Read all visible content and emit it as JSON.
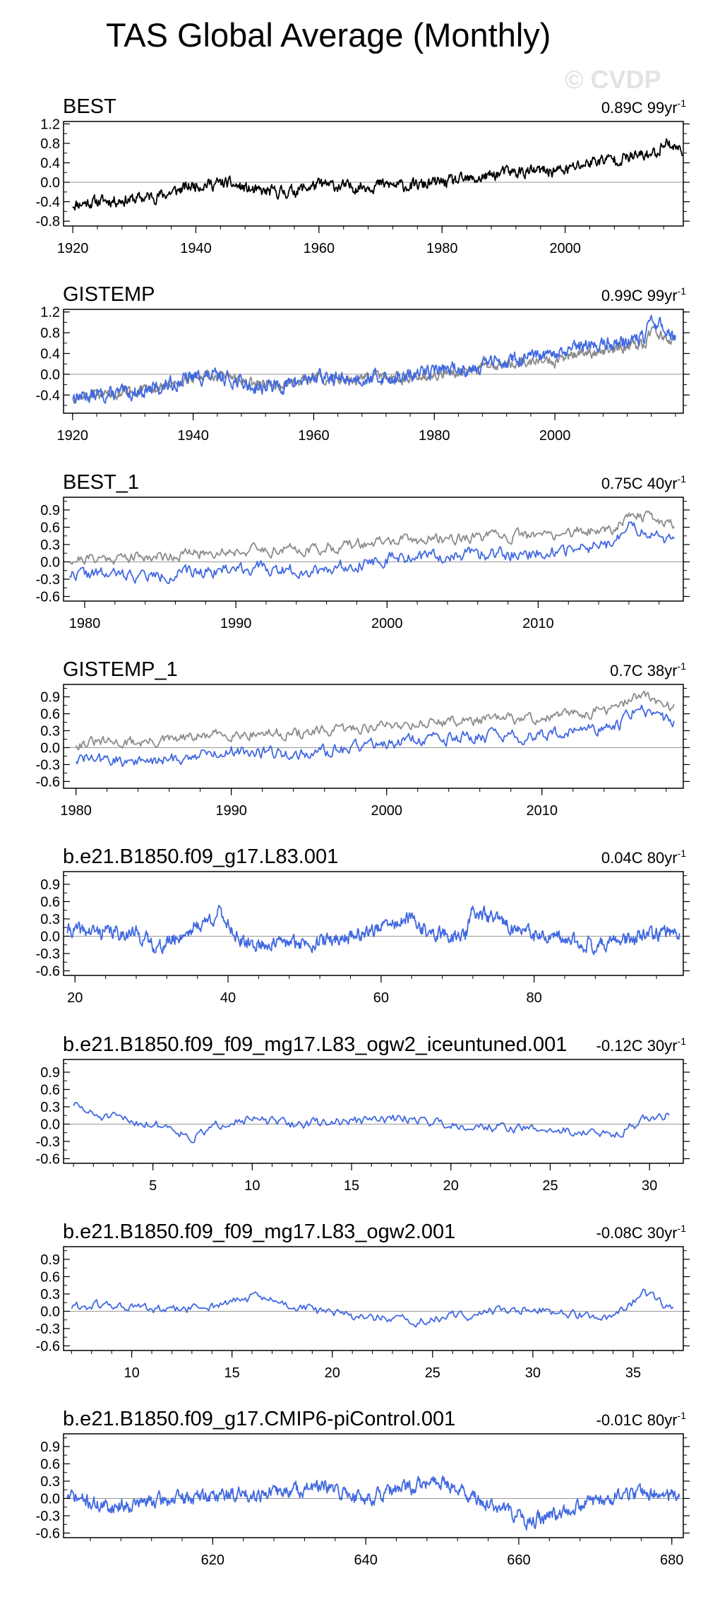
{
  "page": {
    "title": "TAS Global Average (Monthly)",
    "watermark": "© CVDP",
    "trend_unit_suffix": "yr",
    "trend_unit_exp": "-1"
  },
  "colors": {
    "obs": "#000000",
    "model": "#4169e1",
    "ref": "#8c8c8c",
    "zero_line": "#999999"
  },
  "chart_data": [
    {
      "type": "line",
      "title": "BEST",
      "trend_value": "0.89C",
      "trend_period": "99",
      "xlim": [
        1918.5,
        2019.2
      ],
      "ylim": [
        -0.9,
        1.25
      ],
      "yticks": [
        -0.8,
        -0.4,
        0.0,
        0.4,
        0.8,
        1.2
      ],
      "yticklabels": [
        "-0.8",
        "-0.4",
        "0.0",
        "0.4",
        "0.8",
        "1.2"
      ],
      "xticks": [
        1920,
        1940,
        1960,
        1980,
        2000
      ],
      "xticklabels": [
        "1920",
        "1940",
        "1960",
        "1980",
        "2000"
      ],
      "series": [
        {
          "name": "BEST",
          "color": "#000000",
          "x": [
            1920,
            1925,
            1930,
            1935,
            1940,
            1945,
            1950,
            1955,
            1960,
            1965,
            1970,
            1975,
            1980,
            1985,
            1990,
            1995,
            2000,
            2005,
            2010,
            2015,
            2016,
            2019
          ],
          "y": [
            -0.45,
            -0.38,
            -0.35,
            -0.25,
            -0.05,
            -0.02,
            -0.2,
            -0.2,
            -0.05,
            -0.1,
            -0.05,
            -0.08,
            0.0,
            0.05,
            0.2,
            0.22,
            0.25,
            0.45,
            0.5,
            0.6,
            0.85,
            0.65
          ],
          "noise": 0.1,
          "seed": 11
        }
      ]
    },
    {
      "type": "line",
      "title": "GISTEMP",
      "trend_value": "0.99C",
      "trend_period": "99",
      "xlim": [
        1918.5,
        2021.3
      ],
      "ylim": [
        -0.75,
        1.25
      ],
      "yticks": [
        -0.4,
        0.0,
        0.4,
        0.8,
        1.2
      ],
      "yticklabels": [
        "-0.4",
        "0.0",
        "0.4",
        "0.8",
        "1.2"
      ],
      "xticks": [
        1920,
        1940,
        1960,
        1980,
        2000
      ],
      "xticklabels": [
        "1920",
        "1940",
        "1960",
        "1980",
        "2000"
      ],
      "series": [
        {
          "name": "BEST",
          "color": "#8c8c8c",
          "x": [
            1920,
            1925,
            1930,
            1935,
            1940,
            1945,
            1950,
            1955,
            1960,
            1965,
            1970,
            1975,
            1980,
            1985,
            1990,
            1995,
            2000,
            2005,
            2010,
            2015,
            2016,
            2020
          ],
          "y": [
            -0.45,
            -0.38,
            -0.35,
            -0.25,
            -0.05,
            -0.02,
            -0.2,
            -0.2,
            -0.05,
            -0.1,
            -0.05,
            -0.08,
            0.0,
            0.05,
            0.2,
            0.22,
            0.25,
            0.42,
            0.48,
            0.58,
            0.85,
            0.6
          ],
          "noise": 0.08,
          "seed": 12
        },
        {
          "name": "GISTEMP",
          "color": "#4169e1",
          "x": [
            1920,
            1925,
            1930,
            1935,
            1940,
            1945,
            1950,
            1955,
            1960,
            1965,
            1970,
            1975,
            1980,
            1985,
            1990,
            1995,
            2000,
            2005,
            2010,
            2015,
            2016,
            2020
          ],
          "y": [
            -0.42,
            -0.4,
            -0.35,
            -0.25,
            -0.05,
            -0.05,
            -0.25,
            -0.22,
            -0.05,
            -0.1,
            -0.05,
            -0.08,
            0.1,
            0.1,
            0.25,
            0.3,
            0.35,
            0.55,
            0.6,
            0.72,
            1.05,
            0.72
          ],
          "noise": 0.11,
          "seed": 13
        }
      ]
    },
    {
      "type": "line",
      "title": "BEST_1",
      "trend_value": "0.75C",
      "trend_period": "40",
      "xlim": [
        1978.6,
        2019.6
      ],
      "ylim": [
        -0.68,
        1.12
      ],
      "yticks": [
        -0.6,
        -0.3,
        0.0,
        0.3,
        0.6,
        0.9
      ],
      "yticklabels": [
        "-0.6",
        "-0.3",
        "0.0",
        "0.3",
        "0.6",
        "0.9"
      ],
      "xticks": [
        1980,
        1990,
        2000,
        2010
      ],
      "xticklabels": [
        "1980",
        "1990",
        "2000",
        "2010"
      ],
      "series": [
        {
          "name": "BEST",
          "color": "#8c8c8c",
          "x": [
            1979,
            1985,
            1990,
            1995,
            2000,
            2005,
            2010,
            2015,
            2016,
            2019
          ],
          "y": [
            0.05,
            0.1,
            0.2,
            0.22,
            0.35,
            0.42,
            0.45,
            0.58,
            0.85,
            0.65
          ],
          "noise": 0.08,
          "seed": 21
        },
        {
          "name": "BEST_1",
          "color": "#4169e1",
          "x": [
            1979,
            1985,
            1990,
            1995,
            2000,
            2005,
            2010,
            2015,
            2016,
            2019
          ],
          "y": [
            -0.2,
            -0.25,
            -0.1,
            -0.15,
            0.05,
            0.12,
            0.15,
            0.3,
            0.6,
            0.35
          ],
          "noise": 0.09,
          "seed": 22
        }
      ]
    },
    {
      "type": "line",
      "title": "GISTEMP_1",
      "trend_value": "0.7C",
      "trend_period": "38",
      "xlim": [
        1979.2,
        2019.1
      ],
      "ylim": [
        -0.72,
        1.12
      ],
      "yticks": [
        -0.6,
        -0.3,
        0.0,
        0.3,
        0.6,
        0.9
      ],
      "yticklabels": [
        "-0.6",
        "-0.3",
        "0.0",
        "0.3",
        "0.6",
        "0.9"
      ],
      "xticks": [
        1980,
        1990,
        2000,
        2010
      ],
      "xticklabels": [
        "1980",
        "1990",
        "2000",
        "2010"
      ],
      "series": [
        {
          "name": "GISTEMP",
          "color": "#8c8c8c",
          "x": [
            1980,
            1985,
            1990,
            1995,
            2000,
            2005,
            2010,
            2015,
            2016,
            2018.5
          ],
          "y": [
            0.08,
            0.1,
            0.25,
            0.25,
            0.4,
            0.48,
            0.52,
            0.7,
            0.95,
            0.72
          ],
          "noise": 0.08,
          "seed": 31
        },
        {
          "name": "GISTEMP_1",
          "color": "#4169e1",
          "x": [
            1980,
            1985,
            1990,
            1995,
            2000,
            2005,
            2010,
            2015,
            2016,
            2018.5
          ],
          "y": [
            -0.2,
            -0.25,
            -0.05,
            -0.12,
            0.1,
            0.18,
            0.2,
            0.4,
            0.7,
            0.45
          ],
          "noise": 0.09,
          "seed": 32
        }
      ]
    },
    {
      "type": "line",
      "title": "b.e21.B1850.f09_g17.L83.001",
      "trend_value": "0.04C",
      "trend_period": "80",
      "xlim": [
        18.5,
        99.5
      ],
      "ylim": [
        -0.68,
        1.12
      ],
      "yticks": [
        -0.6,
        -0.3,
        0.0,
        0.3,
        0.6,
        0.9
      ],
      "yticklabels": [
        "-0.6",
        "-0.3",
        "0.0",
        "0.3",
        "0.6",
        "0.9"
      ],
      "xticks": [
        20,
        40,
        60,
        80
      ],
      "xticklabels": [
        "20",
        "40",
        "60",
        "80"
      ],
      "series": [
        {
          "name": "b.e21.B1850.f09_g17.L83.001",
          "color": "#4169e1",
          "x": [
            19,
            28,
            31,
            39,
            42,
            52,
            56,
            64,
            66,
            71,
            72,
            80,
            88,
            99
          ],
          "y": [
            0.1,
            0.05,
            -0.2,
            0.4,
            -0.15,
            -0.1,
            0.0,
            0.3,
            0.05,
            0.0,
            0.45,
            0.0,
            -0.15,
            0.1
          ],
          "noise": 0.1,
          "seed": 41
        }
      ]
    },
    {
      "type": "line",
      "title": "b.e21.B1850.f09_f09_mg17.L83_ogw2_iceuntuned.001",
      "trend_value": "-0.12C",
      "trend_period": "30",
      "xlim": [
        0.5,
        31.7
      ],
      "ylim": [
        -0.68,
        1.12
      ],
      "yticks": [
        -0.6,
        -0.3,
        0.0,
        0.3,
        0.6,
        0.9
      ],
      "yticklabels": [
        "-0.6",
        "-0.3",
        "0.0",
        "0.3",
        "0.6",
        "0.9"
      ],
      "xticks": [
        5,
        10,
        15,
        20,
        25,
        30
      ],
      "xticklabels": [
        "5",
        "10",
        "15",
        "20",
        "25",
        "30"
      ],
      "series": [
        {
          "name": "b.e21.B1850.f09_f09_mg17.L83_ogw2_iceuntuned.001",
          "color": "#4169e1",
          "x": [
            1,
            2,
            4,
            6,
            7,
            9,
            12,
            15,
            18,
            20,
            22,
            25,
            27,
            28,
            30,
            31
          ],
          "y": [
            0.35,
            0.15,
            0.05,
            -0.05,
            -0.25,
            0.1,
            0.0,
            0.05,
            0.1,
            0.0,
            -0.05,
            -0.1,
            -0.15,
            -0.2,
            0.1,
            0.15
          ],
          "noise": 0.07,
          "seed": 51
        }
      ]
    },
    {
      "type": "line",
      "title": "b.e21.B1850.f09_f09_mg17.L83_ogw2.001",
      "trend_value": "-0.08C",
      "trend_period": "30",
      "xlim": [
        6.6,
        37.5
      ],
      "ylim": [
        -0.68,
        1.12
      ],
      "yticks": [
        -0.6,
        -0.3,
        0.0,
        0.3,
        0.6,
        0.9
      ],
      "yticklabels": [
        "-0.6",
        "-0.3",
        "0.0",
        "0.3",
        "0.6",
        "0.9"
      ],
      "xticks": [
        10,
        15,
        20,
        25,
        30,
        35
      ],
      "xticklabels": [
        "10",
        "15",
        "20",
        "25",
        "30",
        "35"
      ],
      "series": [
        {
          "name": "b.e21.B1850.f09_f09_mg17.L83_ogw2.001",
          "color": "#4169e1",
          "x": [
            7,
            9,
            12,
            15,
            16,
            18,
            20,
            22,
            24,
            26,
            28,
            30,
            32,
            34,
            35.5,
            37
          ],
          "y": [
            0.08,
            0.1,
            0.0,
            0.15,
            0.25,
            0.1,
            -0.05,
            -0.1,
            -0.2,
            -0.1,
            0.0,
            0.05,
            -0.05,
            -0.15,
            0.3,
            0.05
          ],
          "noise": 0.07,
          "seed": 61
        }
      ]
    },
    {
      "type": "line",
      "title": "b.e21.B1850.f09_g17.CMIP6-piControl.001",
      "trend_value": "-0.01C",
      "trend_period": "80",
      "xlim": [
        600.5,
        681.5
      ],
      "ylim": [
        -0.68,
        1.12
      ],
      "yticks": [
        -0.6,
        -0.3,
        0.0,
        0.3,
        0.6,
        0.9
      ],
      "yticklabels": [
        "-0.6",
        "-0.3",
        "0.0",
        "0.3",
        "0.6",
        "0.9"
      ],
      "xticks": [
        620,
        640,
        660,
        680
      ],
      "xticklabels": [
        "620",
        "640",
        "660",
        "680"
      ],
      "series": [
        {
          "name": "b.e21.B1850.f09_g17.CMIP6-piControl.001",
          "color": "#4169e1",
          "x": [
            601,
            606,
            612,
            620,
            628,
            634,
            640,
            646,
            650,
            655,
            660,
            661,
            668,
            675,
            681
          ],
          "y": [
            0.05,
            -0.15,
            -0.05,
            0.05,
            0.1,
            0.2,
            0.0,
            0.2,
            0.3,
            -0.05,
            -0.3,
            -0.45,
            -0.1,
            0.1,
            0.05
          ],
          "noise": 0.1,
          "seed": 71
        }
      ]
    }
  ]
}
